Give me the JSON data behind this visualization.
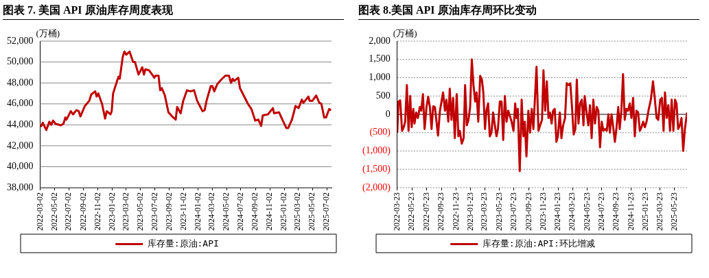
{
  "chart_data": [
    {
      "type": "line",
      "title": "图表 7. 美国 API 原油库存周度表现",
      "ylabel": "(万桶)",
      "legend": "bottom",
      "grid": "y",
      "marker": "none",
      "xlim": [
        "2022-03-02",
        "2025-07-22"
      ],
      "xticks": [
        "2022-03-02",
        "2022-05-02",
        "2022-07-02",
        "2022-09-02",
        "2022-11-02",
        "2023-01-02",
        "2023-03-02",
        "2023-05-02",
        "2023-07-02",
        "2023-09-02",
        "2023-11-02",
        "2024-01-02",
        "2024-03-02",
        "2024-05-02",
        "2024-07-02",
        "2024-09-02",
        "2024-11-02",
        "2025-01-02",
        "2025-03-02",
        "2025-05-02",
        "2025-07-02"
      ],
      "ylim": [
        38000,
        52000
      ],
      "yticks": [
        {
          "value": 38000,
          "label": "38,000"
        },
        {
          "value": 40000,
          "label": "40,000"
        },
        {
          "value": 42000,
          "label": "42,000"
        },
        {
          "value": 44000,
          "label": "44,000"
        },
        {
          "value": 46000,
          "label": "46,000"
        },
        {
          "value": 48000,
          "label": "48,000"
        },
        {
          "value": 50000,
          "label": "50,000"
        },
        {
          "value": 52000,
          "label": "52,000"
        }
      ],
      "series": [
        {
          "name": "库存量:原油:API",
          "color": "#c00000",
          "x": [
            "2022-03-05",
            "2022-03-13",
            "2022-03-28",
            "2022-04-10",
            "2022-04-18",
            "2022-04-26",
            "2022-05-06",
            "2022-05-29",
            "2022-06-09",
            "2022-06-17",
            "2022-06-22",
            "2022-07-10",
            "2022-07-20",
            "2022-08-03",
            "2022-08-13",
            "2022-08-20",
            "2022-09-08",
            "2022-09-27",
            "2022-10-05",
            "2022-10-22",
            "2022-10-28",
            "2022-11-04",
            "2022-11-20",
            "2022-12-03",
            "2022-12-10",
            "2022-12-26",
            "2022-12-31",
            "2023-01-06",
            "2023-01-23",
            "2023-01-29",
            "2023-02-03",
            "2023-02-16",
            "2023-02-23",
            "2023-03-03",
            "2023-03-17",
            "2023-04-01",
            "2023-04-09",
            "2023-04-24",
            "2023-05-10",
            "2023-05-17",
            "2023-05-23",
            "2023-06-08",
            "2023-06-24",
            "2023-06-30",
            "2023-07-06",
            "2023-07-18",
            "2023-07-25",
            "2023-08-01",
            "2023-08-14",
            "2023-08-29",
            "2023-09-14",
            "2023-09-29",
            "2023-10-05",
            "2023-10-20",
            "2023-10-31",
            "2023-11-16",
            "2023-11-30",
            "2023-12-16",
            "2023-12-29",
            "2024-01-14",
            "2024-01-21",
            "2024-01-30",
            "2024-02-07",
            "2024-02-25",
            "2024-03-03",
            "2024-03-11",
            "2024-03-24",
            "2024-04-09",
            "2024-04-27",
            "2024-05-12",
            "2024-05-21",
            "2024-05-28",
            "2024-06-04",
            "2024-06-21",
            "2024-06-28",
            "2024-07-14",
            "2024-08-01",
            "2024-08-16",
            "2024-09-01",
            "2024-09-14",
            "2024-09-26",
            "2024-10-03",
            "2024-10-25",
            "2024-11-15",
            "2024-11-20",
            "2024-12-11",
            "2024-12-27",
            "2025-01-11",
            "2025-01-19",
            "2025-02-04",
            "2025-02-19",
            "2025-03-04",
            "2025-03-18",
            "2025-03-25",
            "2025-04-15",
            "2025-04-20",
            "2025-05-02",
            "2025-05-18",
            "2025-05-31",
            "2025-06-09",
            "2025-06-21",
            "2025-06-29",
            "2025-07-12",
            "2025-07-20"
          ],
          "values": [
            43800,
            44200,
            43500,
            44300,
            44000,
            44400,
            44100,
            43950,
            44100,
            44700,
            44500,
            45300,
            45000,
            45400,
            45300,
            44800,
            45800,
            46300,
            46900,
            47200,
            46700,
            47000,
            46000,
            44600,
            45300,
            45000,
            45300,
            47000,
            48200,
            48600,
            48400,
            50500,
            51000,
            50700,
            51000,
            50000,
            50000,
            48800,
            49500,
            48800,
            49300,
            49200,
            48700,
            48500,
            48700,
            48700,
            47300,
            47500,
            46800,
            45200,
            44800,
            44500,
            45700,
            45100,
            46300,
            47300,
            47200,
            47300,
            46300,
            45600,
            45300,
            45400,
            46300,
            47700,
            47700,
            47200,
            47900,
            48300,
            48700,
            48700,
            48000,
            48400,
            48200,
            48500,
            47500,
            46800,
            46000,
            45500,
            44400,
            44500,
            43900,
            44900,
            45000,
            45600,
            45100,
            45200,
            44400,
            43700,
            43700,
            44500,
            45800,
            45600,
            46400,
            46100,
            46700,
            46300,
            46300,
            46800,
            46100,
            46000,
            44700,
            44700,
            45500,
            45400
          ]
        }
      ]
    },
    {
      "type": "line",
      "title": "图表 8.美国 API 原油库存周环比变动",
      "ylabel": "(万桶)",
      "legend": "bottom",
      "grid": "y",
      "marker": "none",
      "xlim": [
        "2022-03-23",
        "2025-07-14"
      ],
      "xticks": [
        "2022-03-23",
        "2022-05-23",
        "2022-07-23",
        "2022-09-23",
        "2022-11-23",
        "2023-01-23",
        "2023-03-23",
        "2023-05-23",
        "2023-07-23",
        "2023-09-23",
        "2023-11-23",
        "2024-01-23",
        "2024-03-23",
        "2024-05-23",
        "2024-07-23",
        "2024-09-23",
        "2024-11-23",
        "2025-01-23",
        "2025-03-23",
        "2025-05-23"
      ],
      "ylim": [
        -2000,
        2000
      ],
      "yticks": [
        {
          "value": -2000,
          "label": "(2,000)"
        },
        {
          "value": -1500,
          "label": "(1,500)"
        },
        {
          "value": -1000,
          "label": "(1,000)"
        },
        {
          "value": -500,
          "label": "(500)"
        },
        0,
        500,
        {
          "value": 1000,
          "label": "1,000"
        },
        {
          "value": 1500,
          "label": "1,500"
        },
        {
          "value": 2000,
          "label": "2,000"
        }
      ],
      "series": [
        {
          "name": "库存量:原油:API:环比增减",
          "color": "#c00000",
          "x": [
            "2022-03-23",
            "2022-03-28",
            "2022-04-04",
            "2022-04-12",
            "2022-04-19",
            "2022-04-25",
            "2022-05-02",
            "2022-05-09",
            "2022-05-16",
            "2022-05-22",
            "2022-05-29",
            "2022-06-03",
            "2022-06-10",
            "2022-06-17",
            "2022-06-25",
            "2022-07-01",
            "2022-07-08",
            "2022-07-15",
            "2022-07-23",
            "2022-07-30",
            "2022-08-06",
            "2022-08-13",
            "2022-08-20",
            "2022-08-27",
            "2022-09-09",
            "2022-09-17",
            "2022-09-30",
            "2022-10-08",
            "2022-10-14",
            "2022-10-22",
            "2022-10-28",
            "2022-11-04",
            "2022-11-11",
            "2022-11-18",
            "2022-11-26",
            "2022-12-03",
            "2022-12-09",
            "2022-12-17",
            "2022-12-25",
            "2022-12-31",
            "2023-01-07",
            "2023-01-14",
            "2023-01-21",
            "2023-01-28",
            "2023-02-04",
            "2023-02-11",
            "2023-02-17",
            "2023-02-24",
            "2023-03-04",
            "2023-03-11",
            "2023-03-17",
            "2023-03-24",
            "2023-03-30",
            "2023-04-06",
            "2023-04-13",
            "2023-04-20",
            "2023-04-27",
            "2023-05-03",
            "2023-05-11",
            "2023-05-17",
            "2023-05-25",
            "2023-06-01",
            "2023-06-08",
            "2023-06-15",
            "2023-06-22",
            "2023-06-29",
            "2023-07-06",
            "2023-07-13",
            "2023-07-21",
            "2023-07-28",
            "2023-08-02",
            "2023-08-08",
            "2023-08-16",
            "2023-08-24",
            "2023-08-31",
            "2023-09-06",
            "2023-09-13",
            "2023-09-21",
            "2023-09-28",
            "2023-10-05",
            "2023-10-12",
            "2023-10-25",
            "2023-11-02",
            "2023-11-09",
            "2023-11-17",
            "2023-11-23",
            "2023-11-30",
            "2023-12-07",
            "2023-12-14",
            "2023-12-20",
            "2023-12-27",
            "2024-01-02",
            "2024-01-09",
            "2024-01-16",
            "2024-01-22",
            "2024-01-30",
            "2024-02-06",
            "2024-02-13",
            "2024-02-21",
            "2024-02-28",
            "2024-03-07",
            "2024-03-14",
            "2024-03-21",
            "2024-03-28",
            "2024-04-04",
            "2024-04-10",
            "2024-04-17",
            "2024-04-24",
            "2024-05-01",
            "2024-05-08",
            "2024-05-13",
            "2024-05-20",
            "2024-05-28",
            "2024-06-04",
            "2024-06-11",
            "2024-06-18",
            "2024-06-25",
            "2024-07-02",
            "2024-07-09",
            "2024-07-16",
            "2024-07-23",
            "2024-07-30",
            "2024-08-06",
            "2024-08-13",
            "2024-08-20",
            "2024-08-26",
            "2024-09-02",
            "2024-09-09",
            "2024-09-16",
            "2024-09-23",
            "2024-09-30",
            "2024-10-06",
            "2024-10-13",
            "2024-10-20",
            "2024-10-27",
            "2024-11-03",
            "2024-11-10",
            "2024-11-17",
            "2024-11-24",
            "2024-12-01",
            "2024-12-08",
            "2024-12-15",
            "2024-12-22",
            "2024-12-29",
            "2025-01-05",
            "2025-01-12",
            "2025-01-19",
            "2025-01-26",
            "2025-02-03",
            "2025-02-13",
            "2025-02-22",
            "2025-03-02",
            "2025-03-09",
            "2025-03-16",
            "2025-03-24",
            "2025-03-31",
            "2025-04-07",
            "2025-04-13",
            "2025-04-20",
            "2025-04-27",
            "2025-05-04",
            "2025-05-11",
            "2025-05-18",
            "2025-05-25",
            "2025-05-31",
            "2025-06-07",
            "2025-06-14",
            "2025-06-21",
            "2025-06-28",
            "2025-07-05",
            "2025-07-14"
          ],
          "values": [
            -500,
            350,
            380,
            -450,
            -350,
            -200,
            800,
            -450,
            500,
            -350,
            150,
            -250,
            50,
            -100,
            200,
            100,
            550,
            -400,
            200,
            480,
            200,
            -400,
            220,
            200,
            -580,
            100,
            600,
            100,
            400,
            -200,
            700,
            -150,
            450,
            -650,
            550,
            -600,
            -450,
            -800,
            -650,
            800,
            -300,
            -150,
            200,
            1500,
            800,
            350,
            600,
            -200,
            1050,
            950,
            600,
            -400,
            100,
            300,
            -600,
            -500,
            50,
            -250,
            -600,
            -400,
            350,
            350,
            -700,
            500,
            -200,
            100,
            -50,
            -200,
            -450,
            300,
            -100,
            150,
            -1550,
            400,
            -600,
            -200,
            -1150,
            100,
            -500,
            150,
            -400,
            1300,
            -450,
            -300,
            -150,
            1200,
            100,
            900,
            -100,
            50,
            -250,
            100,
            150,
            -750,
            -600,
            50,
            -650,
            -300,
            -100,
            850,
            800,
            850,
            200,
            -550,
            -400,
            950,
            -250,
            300,
            400,
            -300,
            500,
            100,
            -300,
            250,
            -650,
            400,
            -250,
            200,
            100,
            -900,
            -200,
            -450,
            -400,
            -450,
            0,
            -500,
            0,
            -350,
            -750,
            -350,
            200,
            -400,
            100,
            1100,
            -150,
            150,
            100,
            300,
            -100,
            450,
            -600,
            100,
            50,
            -450,
            -350,
            -200,
            -350,
            -200,
            100,
            400,
            900,
            400,
            -100,
            -150,
            400,
            450,
            -450,
            600,
            -100,
            250,
            -450,
            400,
            -450,
            400,
            300,
            -400,
            -300,
            -100,
            -1000,
            -400,
            50
          ]
        }
      ]
    }
  ]
}
